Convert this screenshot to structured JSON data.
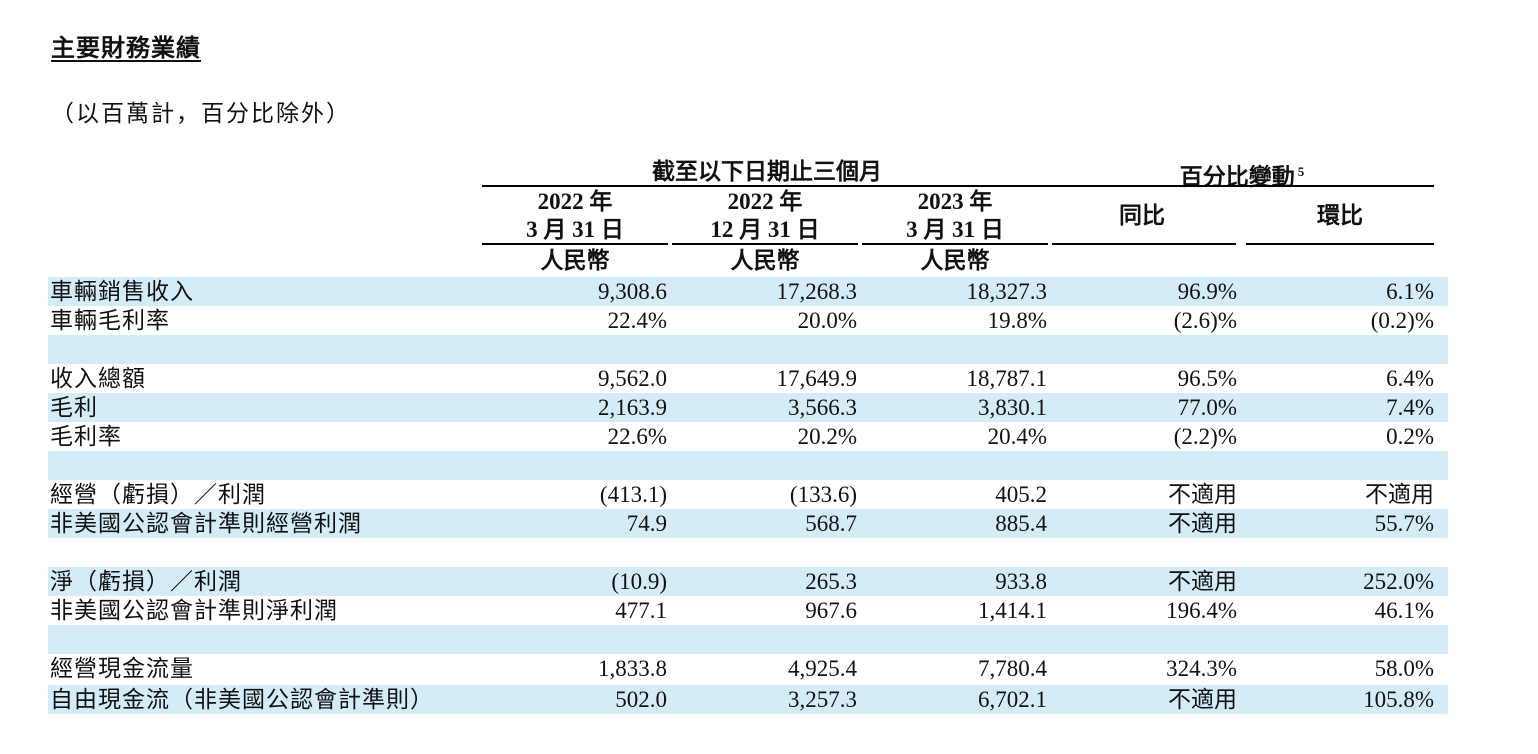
{
  "title": "主要財務業績",
  "subtitle": "（以百萬計，百分比除外）",
  "header": {
    "period_group": "截至以下日期止三個月",
    "change_group": "百分比變動",
    "change_footnote": "5",
    "columns": [
      {
        "year": "2022 年",
        "date": "3 月 31 日",
        "currency": "人民幣"
      },
      {
        "year": "2022 年",
        "date": "12 月 31 日",
        "currency": "人民幣"
      },
      {
        "year": "2023 年",
        "date": "3 月 31 日",
        "currency": "人民幣"
      }
    ],
    "yoy": "同比",
    "qoq": "環比"
  },
  "rows": [
    {
      "label": "車輛銷售收入",
      "v": [
        "9,308.6",
        "17,268.3",
        "18,327.3",
        "96.9%",
        "6.1%"
      ]
    },
    {
      "label": "車輛毛利率",
      "v": [
        "22.4%",
        "20.0%",
        "19.8%",
        "(2.6)%",
        "(0.2)%"
      ]
    },
    {
      "label": "",
      "v": [
        "",
        "",
        "",
        "",
        ""
      ]
    },
    {
      "label": "收入總額",
      "v": [
        "9,562.0",
        "17,649.9",
        "18,787.1",
        "96.5%",
        "6.4%"
      ]
    },
    {
      "label": "毛利",
      "v": [
        "2,163.9",
        "3,566.3",
        "3,830.1",
        "77.0%",
        "7.4%"
      ]
    },
    {
      "label": "毛利率",
      "v": [
        "22.6%",
        "20.2%",
        "20.4%",
        "(2.2)%",
        "0.2%"
      ]
    },
    {
      "label": "",
      "v": [
        "",
        "",
        "",
        "",
        ""
      ]
    },
    {
      "label": "經營（虧損）／利潤",
      "v": [
        "(413.1)",
        "(133.6)",
        "405.2",
        "不適用",
        "不適用"
      ]
    },
    {
      "label": "非美國公認會計準則經營利潤",
      "v": [
        "74.9",
        "568.7",
        "885.4",
        "不適用",
        "55.7%"
      ]
    },
    {
      "label": "",
      "v": [
        "",
        "",
        "",
        "",
        ""
      ]
    },
    {
      "label": "淨（虧損）／利潤",
      "v": [
        "(10.9)",
        "265.3",
        "933.8",
        "不適用",
        "252.0%"
      ]
    },
    {
      "label": "非美國公認會計準則淨利潤",
      "v": [
        "477.1",
        "967.6",
        "1,414.1",
        "196.4%",
        "46.1%"
      ]
    },
    {
      "label": "",
      "v": [
        "",
        "",
        "",
        "",
        ""
      ]
    },
    {
      "label": "經營現金流量",
      "v": [
        "1,833.8",
        "4,925.4",
        "7,780.4",
        "324.3%",
        "58.0%"
      ]
    },
    {
      "label": "自由現金流（非美國公認會計準則）",
      "v": [
        "502.0",
        "3,257.3",
        "6,702.1",
        "不適用",
        "105.8%"
      ]
    }
  ]
}
